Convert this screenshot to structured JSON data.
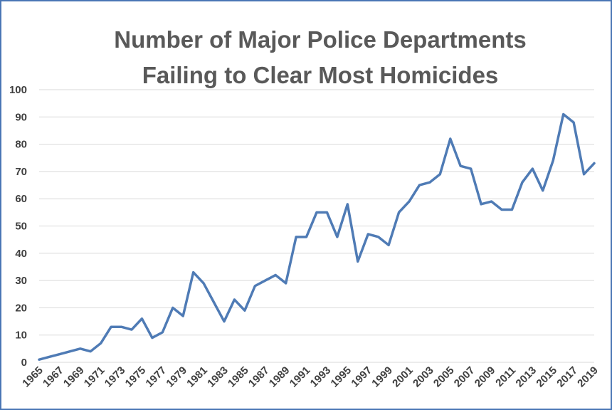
{
  "chart_data": {
    "type": "line",
    "title": [
      "Number of Major Police Departments",
      "Failing to Clear Most Homicides"
    ],
    "xlabel": "",
    "ylabel": "",
    "ylim": [
      0,
      100
    ],
    "yticks": [
      0,
      10,
      20,
      30,
      40,
      50,
      60,
      70,
      80,
      90,
      100
    ],
    "xlim": [
      1965,
      2019
    ],
    "xtick_labels": [
      "1965",
      "1967",
      "1969",
      "1971",
      "1973",
      "1975",
      "1977",
      "1979",
      "1981",
      "1983",
      "1985",
      "1987",
      "1989",
      "1991",
      "1993",
      "1995",
      "1997",
      "1999",
      "2001",
      "2003",
      "2005",
      "2007",
      "2009",
      "2011",
      "2013",
      "2015",
      "2017",
      "2019"
    ],
    "grid": true,
    "legend": "none",
    "line_color": "#4f7bb5",
    "x": [
      1965,
      1966,
      1967,
      1968,
      1969,
      1970,
      1971,
      1972,
      1973,
      1974,
      1975,
      1976,
      1977,
      1978,
      1979,
      1980,
      1981,
      1982,
      1983,
      1984,
      1985,
      1986,
      1987,
      1988,
      1989,
      1990,
      1991,
      1992,
      1993,
      1994,
      1995,
      1996,
      1997,
      1998,
      1999,
      2000,
      2001,
      2002,
      2003,
      2004,
      2005,
      2006,
      2007,
      2008,
      2009,
      2010,
      2011,
      2012,
      2013,
      2014,
      2015,
      2016,
      2017,
      2018,
      2019
    ],
    "values": [
      1,
      2,
      3,
      4,
      5,
      4,
      7,
      13,
      13,
      12,
      16,
      9,
      11,
      20,
      17,
      33,
      29,
      22,
      15,
      23,
      19,
      28,
      30,
      32,
      29,
      46,
      46,
      55,
      55,
      46,
      58,
      37,
      47,
      46,
      43,
      55,
      59,
      65,
      66,
      69,
      82,
      72,
      71,
      58,
      59,
      56,
      56,
      66,
      71,
      63,
      74,
      91,
      88,
      69,
      73
    ]
  }
}
